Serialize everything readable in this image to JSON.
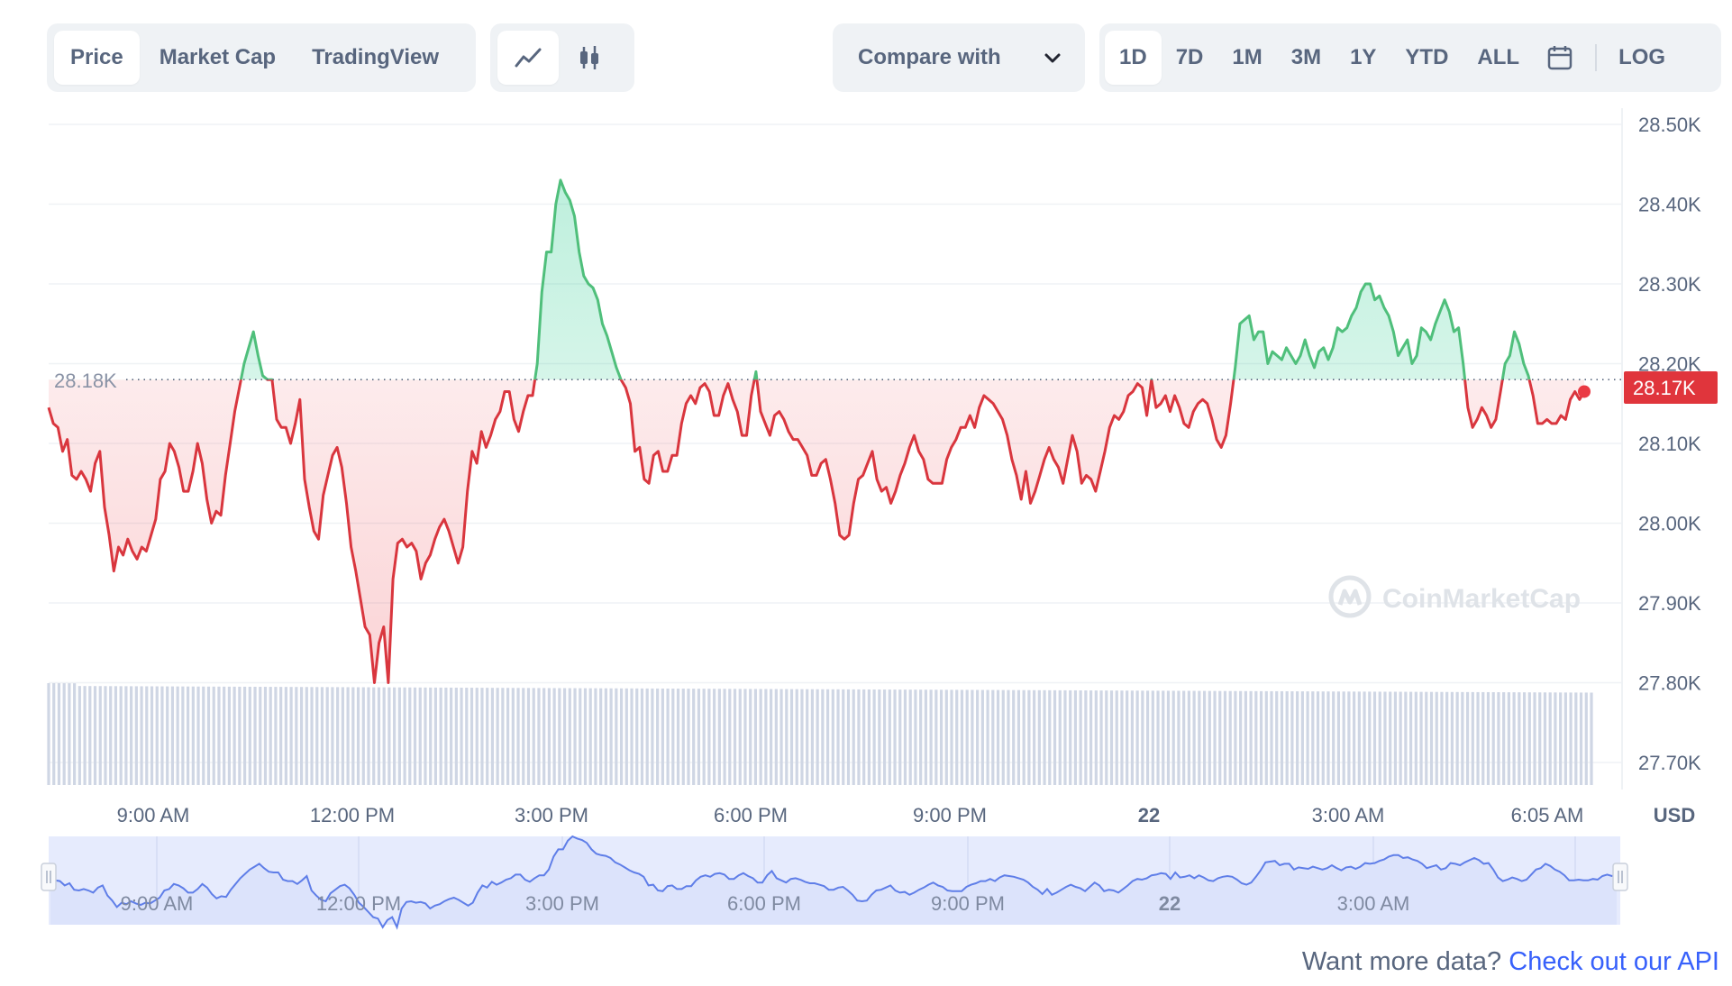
{
  "tabs": [
    {
      "label": "Price",
      "active": true
    },
    {
      "label": "Market Cap",
      "active": false
    },
    {
      "label": "TradingView",
      "active": false
    }
  ],
  "chart_types": [
    {
      "icon": "line-chart-icon",
      "active": true
    },
    {
      "icon": "candlestick-chart-icon",
      "active": false
    }
  ],
  "compare": {
    "label": "Compare with",
    "icon": "chevron-down-icon"
  },
  "ranges": [
    {
      "label": "1D",
      "active": true
    },
    {
      "label": "7D",
      "active": false
    },
    {
      "label": "1M",
      "active": false
    },
    {
      "label": "3M",
      "active": false
    },
    {
      "label": "1Y",
      "active": false
    },
    {
      "label": "YTD",
      "active": false
    },
    {
      "label": "ALL",
      "active": false
    }
  ],
  "calendar_icon": "calendar-icon",
  "log_label": "LOG",
  "watermark": "CoinMarketCap",
  "footer": {
    "text": "Want more data?",
    "link": "Check out our API"
  },
  "colors": {
    "up": "#16c784",
    "down": "#ea3943",
    "up_line": "#4fbf7b",
    "down_line": "#d9363e",
    "navigator": "#5f7ee8",
    "accent": "#3861fb"
  },
  "chart_data": {
    "type": "line",
    "y_unit": "USD",
    "ylim": [
      27700,
      28500
    ],
    "y_ticks": [
      "28.50K",
      "28.40K",
      "28.30K",
      "28.20K",
      "28.10K",
      "28.00K",
      "27.90K",
      "27.80K",
      "27.70K"
    ],
    "baseline": {
      "value": 28180,
      "label": "28.18K"
    },
    "current": {
      "value": 28170,
      "label": "28.17K"
    },
    "x_labels": [
      {
        "label": "9:00 AM",
        "bold": false
      },
      {
        "label": "12:00 PM",
        "bold": false
      },
      {
        "label": "3:00 PM",
        "bold": false
      },
      {
        "label": "6:00 PM",
        "bold": false
      },
      {
        "label": "9:00 PM",
        "bold": false
      },
      {
        "label": "22",
        "bold": true
      },
      {
        "label": "3:00 AM",
        "bold": false
      },
      {
        "label": "6:05 AM",
        "bold": false
      }
    ],
    "navigator_labels": [
      {
        "label": "9:00 AM",
        "bold": false
      },
      {
        "label": "12:00 PM",
        "bold": false
      },
      {
        "label": "3:00 PM",
        "bold": false
      },
      {
        "label": "6:00 PM",
        "bold": false
      },
      {
        "label": "9:00 PM",
        "bold": false
      },
      {
        "label": "22",
        "bold": true
      },
      {
        "label": "3:00 AM",
        "bold": false
      }
    ],
    "series": [
      {
        "values": [
          28145,
          28125,
          28120,
          28090,
          28105,
          28060,
          28055,
          28065,
          28055,
          28040,
          28075,
          28090,
          28020,
          27985,
          27940,
          27970,
          27960,
          27980,
          27965,
          27955,
          27970,
          27965,
          27985,
          28005,
          28055,
          28065,
          28100,
          28090,
          28070,
          28040,
          28040,
          28065,
          28100,
          28075,
          28030,
          28000,
          28015,
          28010,
          28060,
          28100,
          28140,
          28170,
          28200,
          28220,
          28240,
          28210,
          28185,
          28180,
          28180,
          28130,
          28120,
          28120,
          28100,
          28125,
          28155,
          28055,
          28020,
          27990,
          27980,
          28035,
          28060,
          28085,
          28095,
          28070,
          28025,
          27970,
          27940,
          27905,
          27870,
          27860,
          27800,
          27850,
          27870,
          27800,
          27930,
          27975,
          27980,
          27970,
          27975,
          27965,
          27930,
          27950,
          27960,
          27980,
          27995,
          28005,
          27990,
          27970,
          27950,
          27970,
          28040,
          28090,
          28075,
          28115,
          28095,
          28110,
          28130,
          28140,
          28165,
          28165,
          28130,
          28115,
          28140,
          28160,
          28160,
          28200,
          28290,
          28340,
          28340,
          28400,
          28430,
          28415,
          28405,
          28385,
          28340,
          28310,
          28300,
          28295,
          28280,
          28250,
          28235,
          28215,
          28195,
          28180,
          28170,
          28150,
          28090,
          28095,
          28055,
          28050,
          28085,
          28090,
          28065,
          28065,
          28085,
          28085,
          28125,
          28150,
          28160,
          28150,
          28170,
          28175,
          28165,
          28135,
          28135,
          28160,
          28175,
          28155,
          28140,
          28110,
          28110,
          28160,
          28190,
          28140,
          28125,
          28110,
          28135,
          28140,
          28130,
          28115,
          28105,
          28105,
          28095,
          28085,
          28060,
          28060,
          28075,
          28080,
          28055,
          28025,
          27985,
          27980,
          27985,
          28025,
          28055,
          28060,
          28075,
          28090,
          28055,
          28040,
          28045,
          28025,
          28040,
          28060,
          28075,
          28095,
          28110,
          28090,
          28080,
          28055,
          28050,
          28050,
          28050,
          28080,
          28095,
          28105,
          28120,
          28120,
          28135,
          28120,
          28145,
          28160,
          28155,
          28150,
          28140,
          28130,
          28110,
          28080,
          28060,
          28030,
          28065,
          28025,
          28040,
          28060,
          28080,
          28095,
          28080,
          28070,
          28050,
          28080,
          28110,
          28090,
          28050,
          28060,
          28055,
          28040,
          28065,
          28090,
          28120,
          28135,
          28130,
          28140,
          28160,
          28165,
          28175,
          28170,
          28135,
          28180,
          28145,
          28150,
          28160,
          28140,
          28160,
          28145,
          28125,
          28120,
          28140,
          28150,
          28155,
          28150,
          28130,
          28105,
          28095,
          28110,
          28150,
          28195,
          28250,
          28255,
          28260,
          28230,
          28240,
          28240,
          28200,
          28215,
          28210,
          28205,
          28220,
          28210,
          28200,
          28210,
          28230,
          28210,
          28195,
          28215,
          28220,
          28205,
          28220,
          28245,
          28240,
          28245,
          28260,
          28270,
          28290,
          28300,
          28300,
          28280,
          28285,
          28270,
          28260,
          28240,
          28210,
          28220,
          28230,
          28200,
          28210,
          28245,
          28240,
          28230,
          28250,
          28265,
          28280,
          28265,
          28240,
          28245,
          28200,
          28145,
          28120,
          28130,
          28145,
          28135,
          28120,
          28130,
          28165,
          28200,
          28210,
          28240,
          28225,
          28200,
          28185,
          28160,
          28125,
          28125,
          28130,
          28125,
          28125,
          28135,
          28130,
          28155,
          28165,
          28155,
          28165
        ]
      }
    ]
  }
}
